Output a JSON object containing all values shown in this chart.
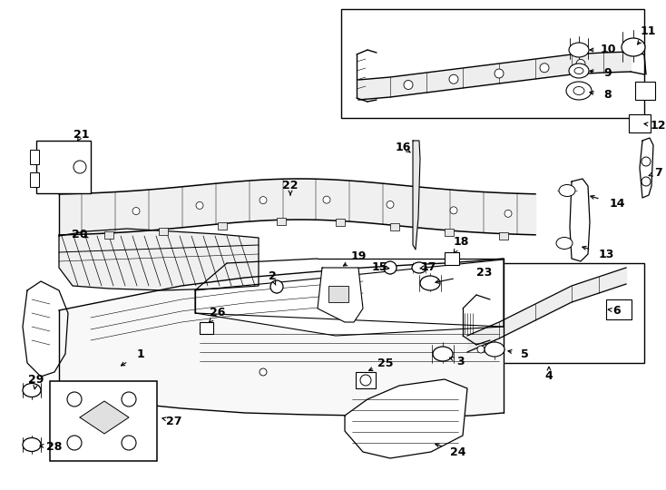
{
  "bg": "#ffffff",
  "lc": "#000000",
  "fw": 7.34,
  "fh": 5.4,
  "dpi": 100
}
